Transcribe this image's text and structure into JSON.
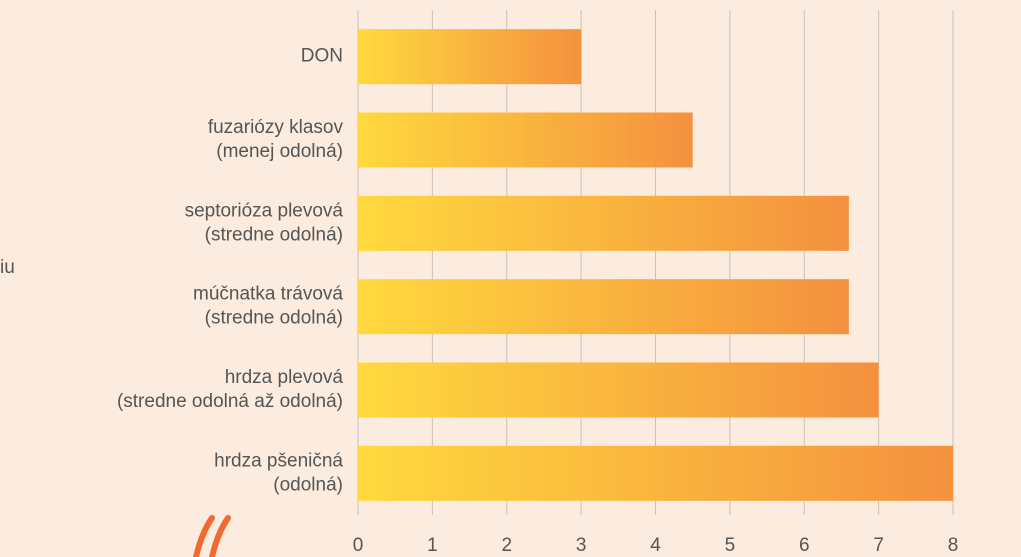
{
  "side_text": "iu",
  "chart_data": {
    "type": "barh",
    "categories": [
      [
        "DON"
      ],
      [
        "fuzariózy klasov",
        "(menej odolná)"
      ],
      [
        "septorióza plevová",
        "(stredne odolná)"
      ],
      [
        "múčnatka trávová",
        "(stredne odolná)"
      ],
      [
        "hrdza plevová",
        "(stredne odolná až odolná)"
      ],
      [
        "hrdza pšeničná",
        "(odolná)"
      ]
    ],
    "values": [
      3,
      4.5,
      6.6,
      6.6,
      7,
      8
    ],
    "gradient": [
      "#ffd93e",
      "#f4913f"
    ],
    "xlim": [
      0,
      8
    ],
    "xticks": [
      0,
      1,
      2,
      3,
      4,
      5,
      6,
      7,
      8
    ],
    "grid": true
  }
}
